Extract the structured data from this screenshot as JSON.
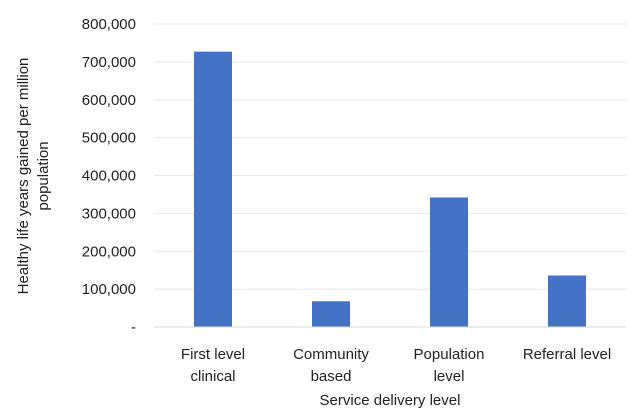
{
  "chart_data": {
    "type": "bar",
    "title": "",
    "categories": [
      [
        "First level",
        "clinical"
      ],
      [
        "Community",
        "based"
      ],
      [
        "Population",
        "level"
      ],
      [
        "Referral level"
      ]
    ],
    "values": [
      727000,
      68000,
      342000,
      136000
    ],
    "xlabel": "Service delivery level",
    "ylabel_lines": [
      "Healthy life years gained per million",
      "population"
    ],
    "ylim": [
      0,
      800000
    ],
    "yticks": [
      0,
      100000,
      200000,
      300000,
      400000,
      500000,
      600000,
      700000,
      800000
    ],
    "ytick_labels": [
      "-",
      "100,000",
      "200,000",
      "300,000",
      "400,000",
      "500,000",
      "600,000",
      "700,000",
      "800,000"
    ],
    "bar_color": "#4472C4",
    "gridlines": true,
    "grid_color": "#E7E7E7",
    "legend": "none"
  }
}
